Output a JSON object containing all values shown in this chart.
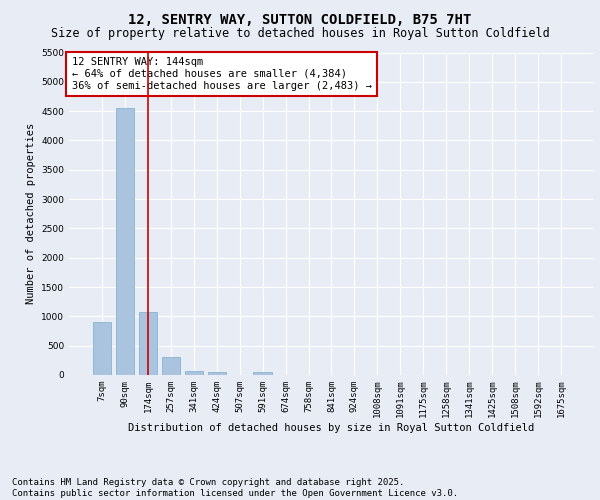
{
  "title": "12, SENTRY WAY, SUTTON COLDFIELD, B75 7HT",
  "subtitle": "Size of property relative to detached houses in Royal Sutton Coldfield",
  "xlabel": "Distribution of detached houses by size in Royal Sutton Coldfield",
  "ylabel": "Number of detached properties",
  "categories": [
    "7sqm",
    "90sqm",
    "174sqm",
    "257sqm",
    "341sqm",
    "424sqm",
    "507sqm",
    "591sqm",
    "674sqm",
    "758sqm",
    "841sqm",
    "924sqm",
    "1008sqm",
    "1091sqm",
    "1175sqm",
    "1258sqm",
    "1341sqm",
    "1425sqm",
    "1508sqm",
    "1592sqm",
    "1675sqm"
  ],
  "values": [
    900,
    4560,
    1080,
    300,
    75,
    55,
    0,
    55,
    0,
    0,
    0,
    0,
    0,
    0,
    0,
    0,
    0,
    0,
    0,
    0,
    0
  ],
  "bar_color": "#aac4e0",
  "bar_edge_color": "#7aaed0",
  "vline_x": 2,
  "vline_color": "#cc0000",
  "annotation_text": "12 SENTRY WAY: 144sqm\n← 64% of detached houses are smaller (4,384)\n36% of semi-detached houses are larger (2,483) →",
  "annotation_box_color": "#ffffff",
  "annotation_box_edge": "#cc0000",
  "ylim": [
    0,
    5500
  ],
  "yticks": [
    0,
    500,
    1000,
    1500,
    2000,
    2500,
    3000,
    3500,
    4000,
    4500,
    5000,
    5500
  ],
  "background_color": "#e8edf5",
  "plot_bg_color": "#e8edf5",
  "grid_color": "#ffffff",
  "footer_text": "Contains HM Land Registry data © Crown copyright and database right 2025.\nContains public sector information licensed under the Open Government Licence v3.0.",
  "title_fontsize": 10,
  "subtitle_fontsize": 8.5,
  "xlabel_fontsize": 7.5,
  "ylabel_fontsize": 7.5,
  "tick_fontsize": 6.5,
  "annotation_fontsize": 7.5,
  "footer_fontsize": 6.5
}
